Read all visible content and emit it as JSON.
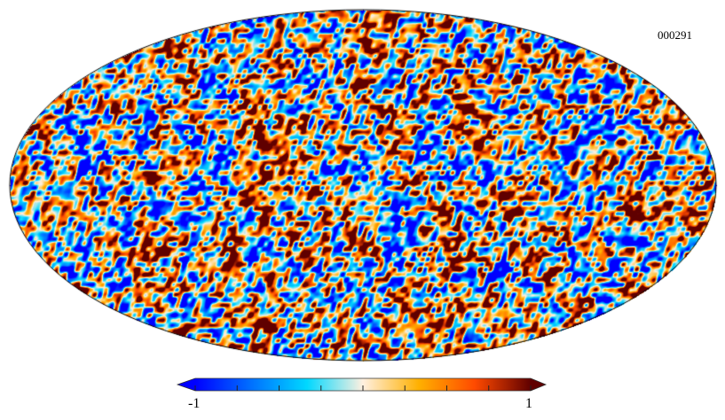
{
  "chart_data": {
    "type": "heatmap",
    "projection": "mollweide",
    "title": "000291",
    "colorbar": {
      "min": -1,
      "max": 1,
      "min_label": "-1",
      "max_label": "1",
      "tick_count": 9,
      "extend": "both",
      "colors": [
        "#0000ff",
        "#0070ff",
        "#00d8ff",
        "#fff0e0",
        "#ffb000",
        "#ff4a00",
        "#600000"
      ]
    }
  }
}
